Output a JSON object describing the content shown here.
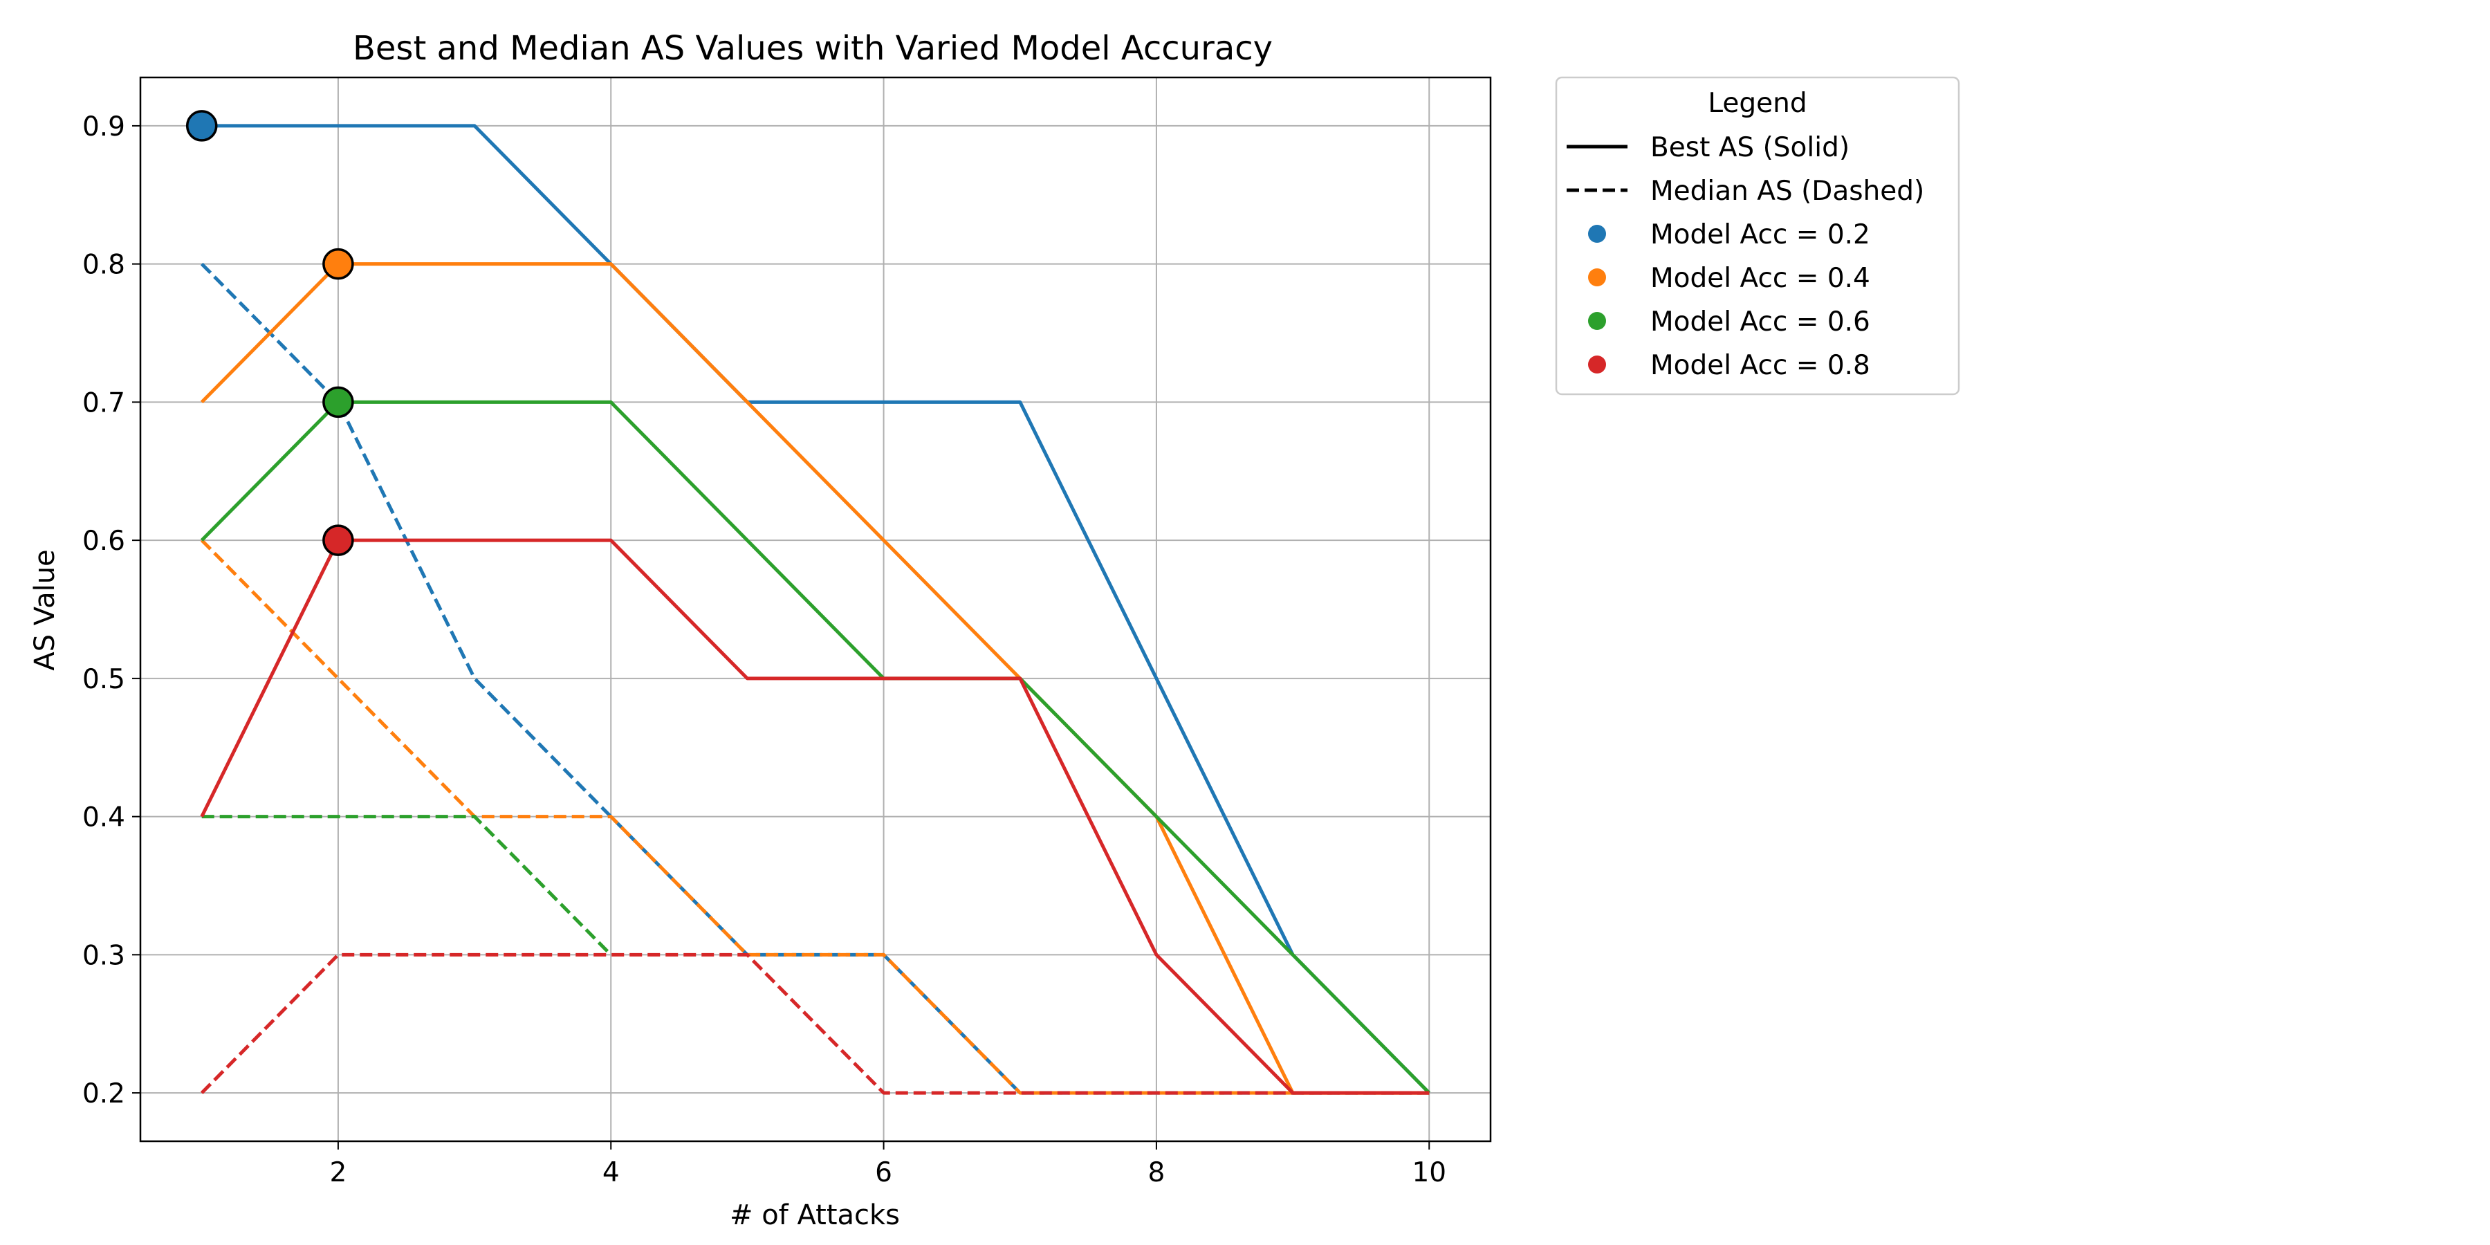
{
  "chart_data": {
    "type": "line",
    "title": "Best and Median AS Values with Varied Model Accuracy",
    "xlabel": "# of Attacks",
    "ylabel": "AS Value",
    "xlim": [
      0.55,
      10.45
    ],
    "ylim": [
      0.165,
      0.935
    ],
    "xticks": [
      2,
      4,
      6,
      8,
      10
    ],
    "yticks": [
      0.2,
      0.3,
      0.4,
      0.5,
      0.6,
      0.7,
      0.8,
      0.9
    ],
    "grid": true,
    "x": [
      1,
      2,
      3,
      4,
      5,
      6,
      7,
      8,
      9,
      10
    ],
    "series": [
      {
        "color": "#1f77b4",
        "best": [
          0.9,
          0.9,
          0.9,
          0.8,
          0.7,
          0.7,
          0.7,
          0.5,
          0.3,
          0.2
        ],
        "median": [
          0.8,
          0.7,
          0.5,
          0.4,
          0.3,
          0.3,
          0.2,
          0.2,
          0.2,
          0.2
        ],
        "peak": {
          "x": 1,
          "y": 0.9
        }
      },
      {
        "color": "#ff7f0e",
        "best": [
          0.7,
          0.8,
          0.8,
          0.8,
          0.7,
          0.6,
          0.5,
          0.4,
          0.2,
          0.2
        ],
        "median": [
          0.6,
          0.5,
          0.4,
          0.4,
          0.3,
          0.3,
          0.2,
          0.2,
          0.2,
          0.2
        ],
        "peak": {
          "x": 2,
          "y": 0.8
        }
      },
      {
        "color": "#2ca02c",
        "best": [
          0.6,
          0.7,
          0.7,
          0.7,
          0.6,
          0.5,
          0.5,
          0.4,
          0.3,
          0.2
        ],
        "median": [
          0.4,
          0.4,
          0.4,
          0.3,
          null,
          null,
          null,
          null,
          null,
          null
        ],
        "peak": {
          "x": 2,
          "y": 0.7
        }
      },
      {
        "color": "#d62728",
        "best": [
          0.4,
          0.6,
          0.6,
          0.6,
          0.5,
          0.5,
          0.5,
          0.3,
          0.2,
          0.2
        ],
        "median": [
          0.2,
          0.3,
          0.3,
          0.3,
          0.3,
          0.2,
          0.2,
          0.2,
          0.2,
          0.2
        ],
        "peak": {
          "x": 2,
          "y": 0.6
        }
      }
    ],
    "legend": {
      "title": "Legend",
      "placement": "outside-upper-right",
      "entries": [
        {
          "label": "Best AS (Solid)",
          "kind": "solid-line",
          "color": "#000000"
        },
        {
          "label": "Median AS (Dashed)",
          "kind": "dashed-line",
          "color": "#000000"
        },
        {
          "label": "Model Acc = 0.2",
          "kind": "dot",
          "color": "#1f77b4"
        },
        {
          "label": "Model Acc = 0.4",
          "kind": "dot",
          "color": "#ff7f0e"
        },
        {
          "label": "Model Acc = 0.6",
          "kind": "dot",
          "color": "#2ca02c"
        },
        {
          "label": "Model Acc = 0.8",
          "kind": "dot",
          "color": "#d62728"
        }
      ]
    }
  }
}
